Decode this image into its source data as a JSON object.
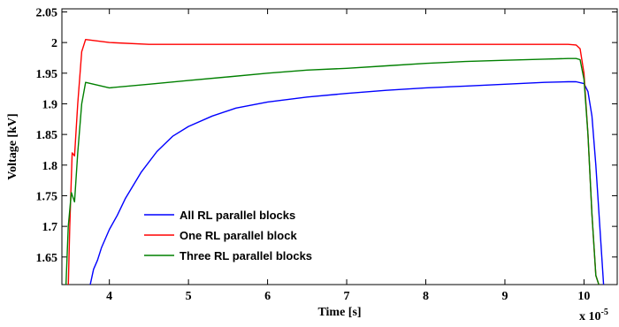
{
  "chart_data": {
    "type": "line",
    "title": "",
    "xlabel": "Time [s]",
    "ylabel": "Voltage [kV]",
    "x_multiplier_label": "x 10",
    "x_multiplier_exponent": "-5",
    "xlim": [
      3.4,
      10.42
    ],
    "ylim": [
      1.605,
      2.055
    ],
    "x_ticks": [
      4,
      5,
      6,
      7,
      8,
      9,
      10
    ],
    "y_ticks": [
      1.65,
      1.7,
      1.75,
      1.8,
      1.85,
      1.9,
      1.95,
      2,
      2.05
    ],
    "grid": false,
    "legend_position": "bottom-left-center",
    "series": [
      {
        "name": "All RL parallel blocks",
        "color": "#0000ff",
        "x": [
          3.7,
          3.75,
          3.8,
          3.85,
          3.9,
          4.0,
          4.1,
          4.2,
          4.4,
          4.6,
          4.8,
          5.0,
          5.3,
          5.6,
          6.0,
          6.5,
          7.0,
          7.5,
          8.0,
          8.5,
          9.0,
          9.5,
          9.8,
          9.9,
          10.0,
          10.05,
          10.1,
          10.15,
          10.2,
          10.25
        ],
        "y": [
          1.575,
          1.6,
          1.63,
          1.645,
          1.665,
          1.695,
          1.718,
          1.745,
          1.788,
          1.822,
          1.847,
          1.863,
          1.88,
          1.893,
          1.903,
          1.911,
          1.917,
          1.922,
          1.926,
          1.929,
          1.932,
          1.935,
          1.936,
          1.936,
          1.933,
          1.92,
          1.88,
          1.8,
          1.7,
          1.6
        ]
      },
      {
        "name": "One RL parallel block",
        "color": "#ff0000",
        "x": [
          3.48,
          3.5,
          3.53,
          3.56,
          3.6,
          3.65,
          3.7,
          4.0,
          4.5,
          5.0,
          6.0,
          7.0,
          8.0,
          9.0,
          9.8,
          9.9,
          9.95,
          10.0,
          10.05,
          10.1,
          10.15,
          10.2
        ],
        "y": [
          1.6,
          1.7,
          1.82,
          1.815,
          1.9,
          1.985,
          2.005,
          2.0,
          1.997,
          1.997,
          1.997,
          1.997,
          1.997,
          1.997,
          1.997,
          1.996,
          1.99,
          1.95,
          1.85,
          1.72,
          1.62,
          1.6
        ]
      },
      {
        "name": "Three RL parallel blocks",
        "color": "#008000",
        "x": [
          3.45,
          3.48,
          3.52,
          3.56,
          3.6,
          3.65,
          3.7,
          4.0,
          4.5,
          5.0,
          5.5,
          6.0,
          6.5,
          7.0,
          7.5,
          8.0,
          8.5,
          9.0,
          9.5,
          9.8,
          9.9,
          9.95,
          10.0,
          10.05,
          10.1,
          10.15,
          10.2
        ],
        "y": [
          1.6,
          1.7,
          1.755,
          1.74,
          1.82,
          1.9,
          1.935,
          1.926,
          1.932,
          1.938,
          1.944,
          1.95,
          1.955,
          1.958,
          1.962,
          1.966,
          1.969,
          1.971,
          1.973,
          1.974,
          1.974,
          1.972,
          1.94,
          1.85,
          1.72,
          1.62,
          1.6
        ]
      }
    ]
  }
}
